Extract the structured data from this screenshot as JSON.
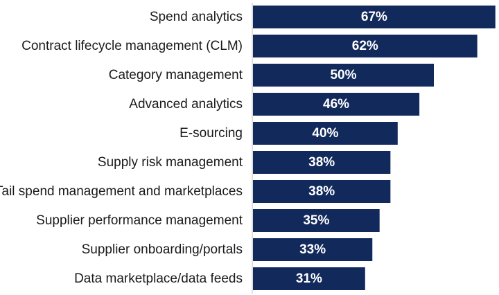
{
  "chart_data": {
    "type": "bar",
    "orientation": "horizontal",
    "categories": [
      "Spend analytics",
      "Contract lifecycle management (CLM)",
      "Category management",
      "Advanced analytics",
      "E-sourcing",
      "Supply risk management",
      "Tail spend management and marketplaces",
      "Supplier performance management",
      "Supplier onboarding/portals",
      "Data marketplace/data feeds"
    ],
    "values": [
      67,
      62,
      50,
      46,
      40,
      38,
      38,
      35,
      33,
      31
    ],
    "value_labels": [
      "67%",
      "62%",
      "50%",
      "46%",
      "40%",
      "38%",
      "38%",
      "35%",
      "33%",
      "31%"
    ],
    "xlim": [
      0,
      70
    ],
    "grid": false,
    "legend": "none",
    "title": "",
    "xlabel": "",
    "ylabel": ""
  },
  "colors": {
    "bar": "#12295c",
    "axis": "#bfbfbf",
    "label": "#1a1a1a",
    "value_label": "#ffffff"
  }
}
